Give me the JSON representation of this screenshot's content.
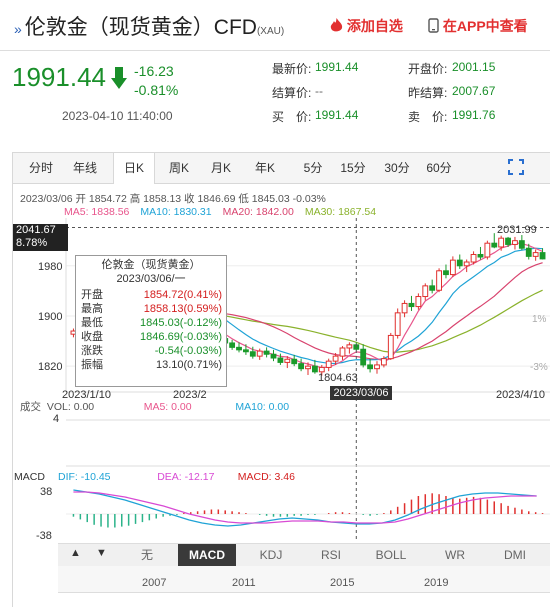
{
  "header": {
    "title": "伦敦金（现货黄金）CFD",
    "subtitle": "(XAU)",
    "add_favorite": "添加自选",
    "app_view": "在APP中查看"
  },
  "quote": {
    "price": "1991.44",
    "change": "-16.23",
    "change_pct": "-0.81%",
    "time": "2023-04-10 11:40:00",
    "rows": [
      [
        {
          "label": "最新价:",
          "value": "1991.44",
          "tone": "green"
        },
        {
          "label": "开盘价:",
          "value": "2001.15",
          "tone": "green"
        }
      ],
      [
        {
          "label": "结算价:",
          "value": "--",
          "tone": "gray"
        },
        {
          "label": "昨结算:",
          "value": "2007.67",
          "tone": "green"
        }
      ],
      [
        {
          "label": "买　价:",
          "value": "1991.44",
          "tone": "green"
        },
        {
          "label": "卖　价:",
          "value": "1991.76",
          "tone": "green"
        }
      ]
    ]
  },
  "tabs": [
    "分时",
    "年线",
    "日K",
    "周K",
    "月K",
    "年K",
    "5分",
    "15分",
    "30分",
    "60分"
  ],
  "active_tab": 2,
  "ohlc_line": "2023/03/06 开 1854.72 高 1858.13 收 1846.69 低 1845.03 -0.03%",
  "ma": [
    {
      "text": "MA5: 1838.56",
      "color": "#e8558c"
    },
    {
      "text": "MA10: 1830.31",
      "color": "#1fa3d6"
    },
    {
      "text": "MA20: 1842.00",
      "color": "#d8436e"
    },
    {
      "text": "MA30: 1867.54",
      "color": "#8ab22c"
    }
  ],
  "tooltip": {
    "title": "伦敦金（现货黄金）",
    "date": "2023/03/06/一",
    "rows": [
      {
        "k": "开盘",
        "v": "1854.72(0.41%)",
        "color": "#d42020"
      },
      {
        "k": "最高",
        "v": "1858.13(0.59%)",
        "color": "#d42020"
      },
      {
        "k": "最低",
        "v": "1845.03(-0.12%)",
        "color": "#1a8f2a"
      },
      {
        "k": "收盘",
        "v": "1846.69(-0.03%)",
        "color": "#1a8f2a"
      },
      {
        "k": "涨跌",
        "v": "-0.54(-0.03%)",
        "color": "#1a8f2a"
      },
      {
        "k": "振幅",
        "v": "13.10(0.71%)",
        "color": "#333333"
      }
    ]
  },
  "crosshair_price": "2041.67",
  "crosshair_pct": "8.78%",
  "crosshair_date": "2023/03/06",
  "y_labels": [
    "1980",
    "1900",
    "1820"
  ],
  "high_label": "2031.99",
  "low_label": "1804.63",
  "x_labels": [
    "2023/1/10",
    "2023/2",
    "2023/4/10"
  ],
  "right_pct": [
    "1%",
    "-3%"
  ],
  "volume": {
    "label": "成交",
    "vol": "VOL: 0.00",
    "ma5": "MA5: 0.00",
    "ma10": "MA10: 0.00",
    "scale": "4"
  },
  "macd": {
    "label": "MACD",
    "dif": "DIF: -10.45",
    "dea": "DEA: -12.17",
    "macd": "MACD: 3.46",
    "top": "38",
    "bottom": "-38"
  },
  "indicators": [
    "无",
    "MACD",
    "KDJ",
    "RSI",
    "BOLL",
    "WR",
    "DMI"
  ],
  "active_indicator": 1,
  "years": [
    "2007",
    "2011",
    "2015",
    "2019"
  ],
  "chart_data": {
    "type": "candlestick",
    "candles": [
      [
        1871,
        1880,
        1866,
        1876
      ],
      [
        1876,
        1882,
        1869,
        1873
      ],
      [
        1873,
        1885,
        1870,
        1880
      ],
      [
        1880,
        1888,
        1875,
        1884
      ],
      [
        1884,
        1892,
        1880,
        1889
      ],
      [
        1889,
        1895,
        1884,
        1892
      ],
      [
        1892,
        1904,
        1887,
        1900
      ],
      [
        1900,
        1912,
        1896,
        1908
      ],
      [
        1908,
        1920,
        1904,
        1917
      ],
      [
        1917,
        1926,
        1910,
        1921
      ],
      [
        1921,
        1931,
        1915,
        1926
      ],
      [
        1926,
        1949,
        1922,
        1945
      ],
      [
        1945,
        1958,
        1938,
        1950
      ],
      [
        1950,
        1953,
        1928,
        1931
      ],
      [
        1931,
        1938,
        1920,
        1927
      ],
      [
        1927,
        1935,
        1915,
        1919
      ],
      [
        1919,
        1925,
        1905,
        1909
      ],
      [
        1909,
        1915,
        1896,
        1901
      ],
      [
        1901,
        1905,
        1882,
        1887
      ],
      [
        1887,
        1892,
        1874,
        1877
      ],
      [
        1877,
        1883,
        1866,
        1870
      ],
      [
        1870,
        1876,
        1860,
        1864
      ],
      [
        1864,
        1871,
        1852,
        1857
      ],
      [
        1857,
        1862,
        1846,
        1850
      ],
      [
        1850,
        1858,
        1842,
        1846
      ],
      [
        1846,
        1855,
        1838,
        1843
      ],
      [
        1843,
        1851,
        1832,
        1836
      ],
      [
        1836,
        1848,
        1830,
        1844
      ],
      [
        1844,
        1850,
        1834,
        1839
      ],
      [
        1839,
        1846,
        1828,
        1833
      ],
      [
        1833,
        1840,
        1822,
        1826
      ],
      [
        1826,
        1836,
        1817,
        1831
      ],
      [
        1831,
        1838,
        1820,
        1824
      ],
      [
        1824,
        1832,
        1812,
        1816
      ],
      [
        1816,
        1826,
        1806,
        1820
      ],
      [
        1820,
        1830,
        1808,
        1811
      ],
      [
        1811,
        1822,
        1805,
        1818
      ],
      [
        1818,
        1832,
        1812,
        1828
      ],
      [
        1828,
        1841,
        1822,
        1836
      ],
      [
        1836,
        1852,
        1830,
        1849
      ],
      [
        1849,
        1858,
        1840,
        1854
      ],
      [
        1854,
        1858,
        1845,
        1847
      ],
      [
        1847,
        1855,
        1818,
        1822
      ],
      [
        1822,
        1832,
        1810,
        1816
      ],
      [
        1816,
        1828,
        1808,
        1822
      ],
      [
        1822,
        1836,
        1818,
        1832
      ],
      [
        1832,
        1873,
        1830,
        1869
      ],
      [
        1869,
        1912,
        1864,
        1905
      ],
      [
        1905,
        1925,
        1898,
        1920
      ],
      [
        1920,
        1932,
        1908,
        1915
      ],
      [
        1915,
        1936,
        1910,
        1931
      ],
      [
        1931,
        1952,
        1925,
        1948
      ],
      [
        1948,
        1958,
        1936,
        1941
      ],
      [
        1941,
        1976,
        1938,
        1972
      ],
      [
        1972,
        1982,
        1960,
        1966
      ],
      [
        1966,
        1995,
        1962,
        1989
      ],
      [
        1989,
        1998,
        1975,
        1980
      ],
      [
        1980,
        1990,
        1970,
        1986
      ],
      [
        1986,
        2003,
        1982,
        1998
      ],
      [
        1998,
        2010,
        1990,
        1994
      ],
      [
        1994,
        2020,
        1990,
        2016
      ],
      [
        2016,
        2032,
        2008,
        2010
      ],
      [
        2010,
        2028,
        2004,
        2024
      ],
      [
        2024,
        2026,
        2010,
        2014
      ],
      [
        2014,
        2026,
        2006,
        2020
      ],
      [
        2020,
        2029,
        2005,
        2008
      ],
      [
        2008,
        2015,
        1990,
        1995
      ],
      [
        1995,
        2006,
        1988,
        2001
      ],
      [
        2001,
        2008,
        1990,
        1991
      ]
    ],
    "ylim": [
      1790,
      2045
    ]
  }
}
